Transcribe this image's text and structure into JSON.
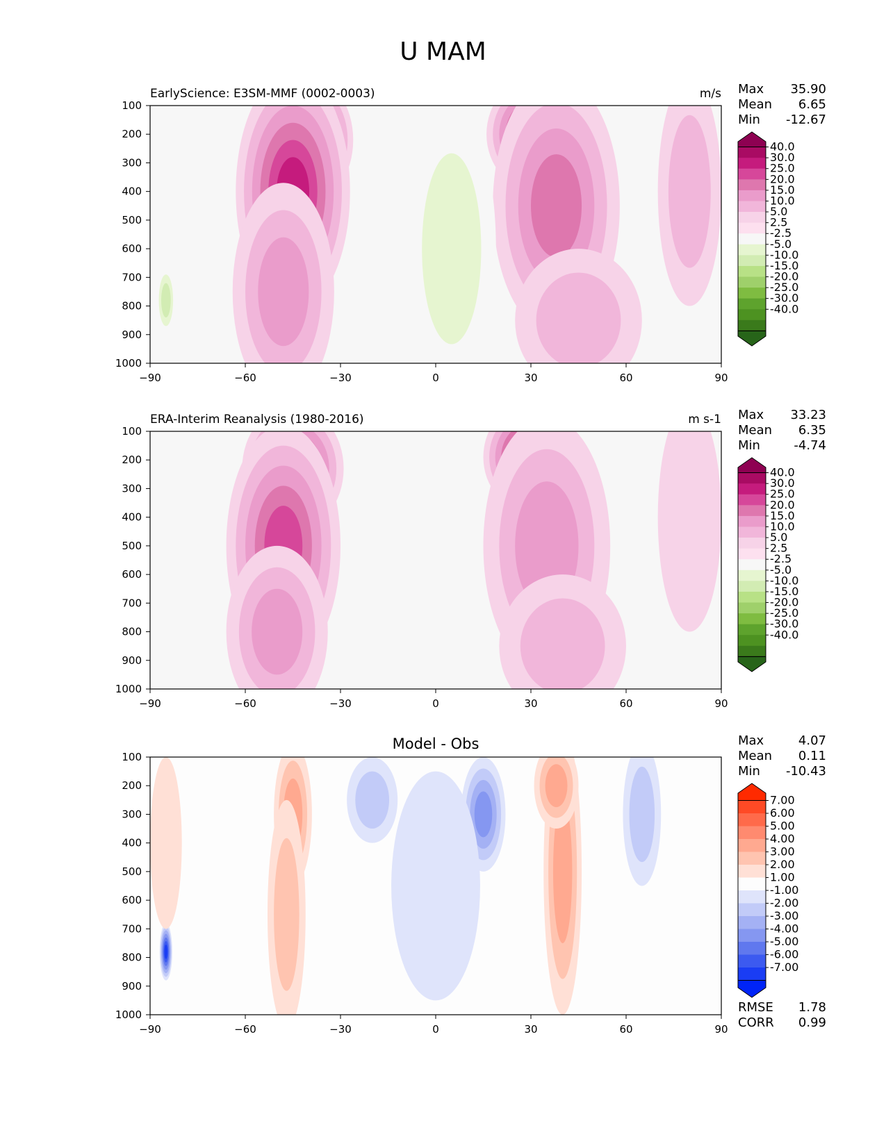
{
  "figure": {
    "suptitle": "U MAM"
  },
  "chart_data": [
    {
      "type": "heatmap",
      "id": "test",
      "title_left": "EarlyScience: E3SM-MMF (0002-0003)",
      "title_center": "",
      "units": "m/s",
      "xlabel": "",
      "ylabel": "",
      "xlim": [
        -90,
        90
      ],
      "ylim": [
        1000,
        100
      ],
      "x_ticks": [
        "−90",
        "−60",
        "−30",
        "0",
        "30",
        "60",
        "90"
      ],
      "y_ticks": [
        "100",
        "200",
        "300",
        "400",
        "500",
        "600",
        "700",
        "800",
        "900",
        "1000"
      ],
      "stats": [
        {
          "label": "Max",
          "value": "35.90"
        },
        {
          "label": "Mean",
          "value": "6.65"
        },
        {
          "label": "Min",
          "value": "-12.67"
        }
      ],
      "colorbar": {
        "tick_labels": [
          "40.0",
          "30.0",
          "25.0",
          "20.0",
          "15.0",
          "10.0",
          "5.0",
          "2.5",
          "-2.5",
          "-5.0",
          "-10.0",
          "-15.0",
          "-20.0",
          "-25.0",
          "-30.0",
          "-40.0"
        ],
        "colors": [
          "#8e0152",
          "#a90b63",
          "#c51b7d",
          "#d6479a",
          "#de77ae",
          "#ea9ccb",
          "#f1b6da",
          "#f7d3e8",
          "#fde0ef",
          "#f7f7f7",
          "#e6f5d0",
          "#d2ecb3",
          "#b8e186",
          "#9fd06b",
          "#7fbc41",
          "#5ea32d",
          "#4d9221",
          "#3a7a1b",
          "#276419"
        ]
      },
      "features": [
        {
          "lat": -40,
          "p": 220,
          "value": 35.9,
          "rx": 14,
          "rp": 220
        },
        {
          "lat": -45,
          "p": 400,
          "value": 25,
          "rx": 18,
          "rp": 420
        },
        {
          "lat": -48,
          "p": 750,
          "value": 12,
          "rx": 16,
          "rp": 380
        },
        {
          "lat": 32,
          "p": 200,
          "value": 32,
          "rx": 16,
          "rp": 200
        },
        {
          "lat": 38,
          "p": 450,
          "value": 15,
          "rx": 20,
          "rp": 450
        },
        {
          "lat": 45,
          "p": 850,
          "value": 6,
          "rx": 20,
          "rp": 250
        },
        {
          "lat": 5,
          "p": 600,
          "value": -5,
          "rx": 14,
          "rp": 500
        },
        {
          "lat": -85,
          "p": 780,
          "value": -12.67,
          "rx": 3,
          "rp": 120
        },
        {
          "lat": 80,
          "p": 400,
          "value": 5,
          "rx": 10,
          "rp": 400
        }
      ]
    },
    {
      "type": "heatmap",
      "id": "ref",
      "title_left": "ERA-Interim Reanalysis (1980-2016)",
      "title_center": "",
      "units": "m s-1",
      "xlabel": "",
      "ylabel": "",
      "xlim": [
        -90,
        90
      ],
      "ylim": [
        1000,
        100
      ],
      "x_ticks": [
        "−90",
        "−60",
        "−30",
        "0",
        "30",
        "60",
        "90"
      ],
      "y_ticks": [
        "100",
        "200",
        "300",
        "400",
        "500",
        "600",
        "700",
        "800",
        "900",
        "1000"
      ],
      "stats": [
        {
          "label": "Max",
          "value": "33.23"
        },
        {
          "label": "Mean",
          "value": "6.35"
        },
        {
          "label": "Min",
          "value": "-4.74"
        }
      ],
      "colorbar": {
        "tick_labels": [
          "40.0",
          "30.0",
          "25.0",
          "20.0",
          "15.0",
          "10.0",
          "5.0",
          "2.5",
          "-2.5",
          "-5.0",
          "-10.0",
          "-15.0",
          "-20.0",
          "-25.0",
          "-30.0",
          "-40.0"
        ],
        "colors": [
          "#8e0152",
          "#a90b63",
          "#c51b7d",
          "#d6479a",
          "#de77ae",
          "#ea9ccb",
          "#f1b6da",
          "#f7d3e8",
          "#fde0ef",
          "#f7f7f7",
          "#e6f5d0",
          "#d2ecb3",
          "#b8e186",
          "#9fd06b",
          "#7fbc41",
          "#5ea32d",
          "#4d9221",
          "#3a7a1b",
          "#276419"
        ]
      },
      "features": [
        {
          "lat": -45,
          "p": 230,
          "value": 29,
          "rx": 16,
          "rp": 220
        },
        {
          "lat": -48,
          "p": 500,
          "value": 20,
          "rx": 18,
          "rp": 420
        },
        {
          "lat": -50,
          "p": 800,
          "value": 10,
          "rx": 16,
          "rp": 300
        },
        {
          "lat": 30,
          "p": 190,
          "value": 33.23,
          "rx": 15,
          "rp": 190
        },
        {
          "lat": 35,
          "p": 500,
          "value": 14,
          "rx": 20,
          "rp": 450
        },
        {
          "lat": 40,
          "p": 850,
          "value": 6,
          "rx": 20,
          "rp": 250
        },
        {
          "lat": 0,
          "p": 750,
          "value": -4.74,
          "rx": 12,
          "rp": 400
        },
        {
          "lat": 80,
          "p": 400,
          "value": 4,
          "rx": 10,
          "rp": 400
        }
      ]
    },
    {
      "type": "heatmap",
      "id": "diff",
      "title_left": "",
      "title_center": "Model - Obs",
      "units": "",
      "xlabel": "",
      "ylabel": "",
      "xlim": [
        -90,
        90
      ],
      "ylim": [
        1000,
        100
      ],
      "x_ticks": [
        "−90",
        "−60",
        "−30",
        "0",
        "30",
        "60",
        "90"
      ],
      "y_ticks": [
        "100",
        "200",
        "300",
        "400",
        "500",
        "600",
        "700",
        "800",
        "900",
        "1000"
      ],
      "stats": [
        {
          "label": "Max",
          "value": "4.07"
        },
        {
          "label": "Mean",
          "value": "0.11"
        },
        {
          "label": "Min",
          "value": "-10.43"
        }
      ],
      "metrics": [
        {
          "label": "RMSE",
          "value": "1.78"
        },
        {
          "label": "CORR",
          "value": "0.99"
        }
      ],
      "colorbar": {
        "tick_labels": [
          "7.00",
          "6.00",
          "5.00",
          "4.00",
          "3.00",
          "2.00",
          "1.00",
          "-1.00",
          "-2.00",
          "-3.00",
          "-4.00",
          "-5.00",
          "-6.00",
          "-7.00"
        ],
        "colors": [
          "#ff2a00",
          "#ff4a25",
          "#ff6a4a",
          "#ff8a6f",
          "#ffa990",
          "#ffc4b0",
          "#ffe0d6",
          "#fdfdfd",
          "#dfe4fb",
          "#c2cbf8",
          "#a4b1f4",
          "#8597f1",
          "#6078ee",
          "#3c5af0",
          "#1a3df4",
          "#0024f7"
        ]
      },
      "features": [
        {
          "lat": -45,
          "p": 300,
          "value": 3,
          "rx": 6,
          "rp": 250
        },
        {
          "lat": -47,
          "p": 650,
          "value": 2,
          "rx": 6,
          "rp": 400
        },
        {
          "lat": 40,
          "p": 500,
          "value": 3,
          "rx": 6,
          "rp": 500
        },
        {
          "lat": 38,
          "p": 200,
          "value": 3.5,
          "rx": 7,
          "rp": 150
        },
        {
          "lat": 15,
          "p": 300,
          "value": -4,
          "rx": 7,
          "rp": 200
        },
        {
          "lat": -20,
          "p": 250,
          "value": -2.5,
          "rx": 8,
          "rp": 150
        },
        {
          "lat": 0,
          "p": 550,
          "value": -1.5,
          "rx": 14,
          "rp": 400
        },
        {
          "lat": 65,
          "p": 300,
          "value": -2,
          "rx": 6,
          "rp": 250
        },
        {
          "lat": -85,
          "p": 780,
          "value": -10.43,
          "rx": 2,
          "rp": 100
        },
        {
          "lat": -85,
          "p": 400,
          "value": 1.5,
          "rx": 5,
          "rp": 300
        }
      ]
    }
  ]
}
